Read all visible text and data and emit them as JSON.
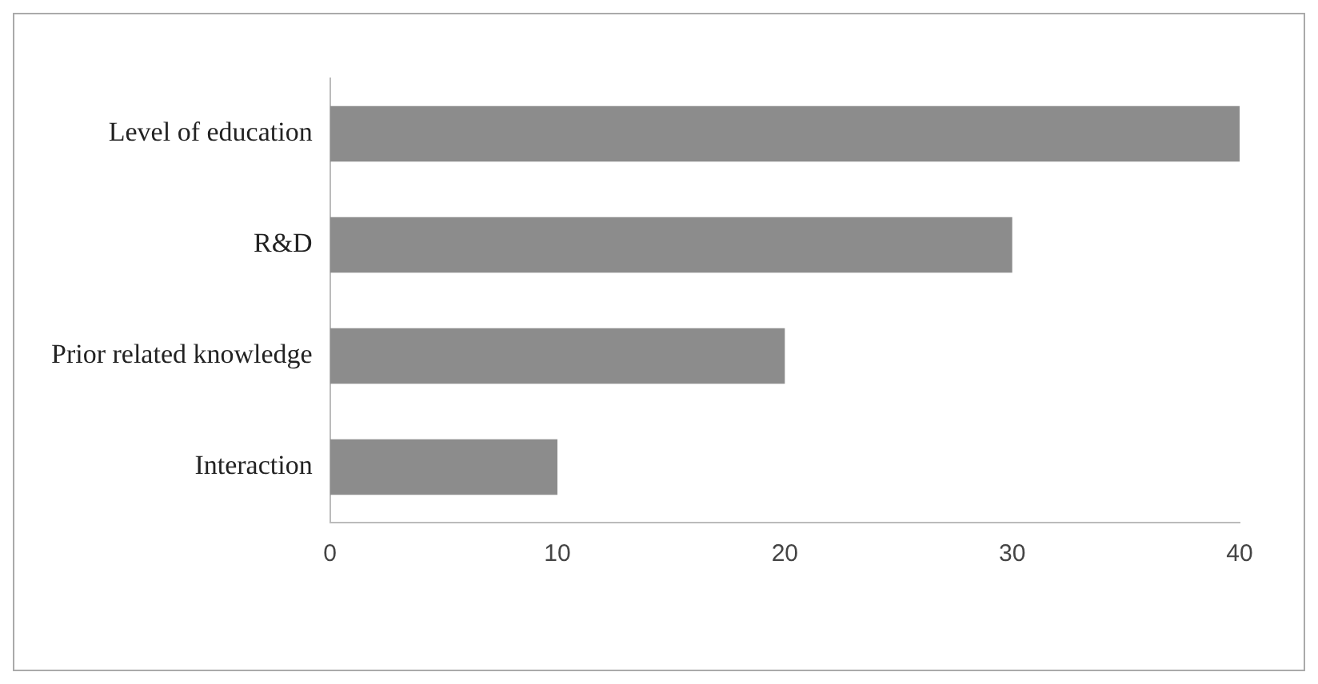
{
  "chart_data": {
    "type": "bar",
    "orientation": "horizontal",
    "categories": [
      "Level of education",
      "R&D",
      "Prior related knowledge",
      "Interaction"
    ],
    "values": [
      40,
      30,
      20,
      10
    ],
    "color": "#8c8c8c",
    "xlim": [
      0,
      40
    ],
    "xticks": [
      0,
      10,
      20,
      30,
      40
    ],
    "grid": false,
    "legend": false
  }
}
